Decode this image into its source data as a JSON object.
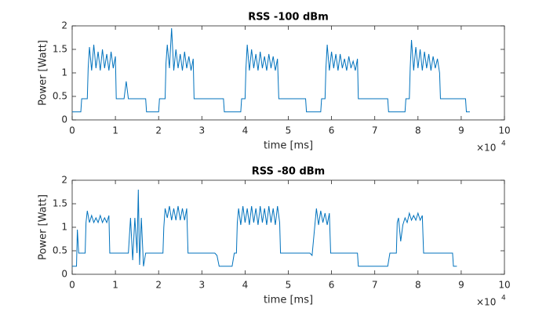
{
  "chart_data": [
    {
      "type": "line",
      "title": "RSS -100 dBm",
      "x_label": "time [ms]",
      "y_label": "Power [Watt]",
      "x_scale_base": "×10",
      "x_scale_exponent": "4",
      "xlim": [
        0,
        10
      ],
      "xticks": [
        0,
        1,
        2,
        3,
        4,
        5,
        6,
        7,
        8,
        9,
        10
      ],
      "ylim": [
        0,
        2
      ],
      "yticks": [
        0,
        0.5,
        1,
        1.5,
        2
      ],
      "grid": false,
      "x": [
        0,
        0.2,
        0.22,
        0.35,
        0.37,
        0.4,
        0.45,
        0.5,
        0.55,
        0.6,
        0.65,
        0.7,
        0.75,
        0.8,
        0.85,
        0.9,
        0.95,
        1.0,
        1.02,
        1.2,
        1.25,
        1.3,
        1.7,
        1.72,
        2.0,
        2.02,
        2.15,
        2.17,
        2.2,
        2.25,
        2.3,
        2.35,
        2.4,
        2.45,
        2.5,
        2.55,
        2.6,
        2.65,
        2.7,
        2.75,
        2.8,
        2.82,
        3.5,
        3.52,
        3.9,
        3.92,
        4.0,
        4.02,
        4.05,
        4.1,
        4.15,
        4.2,
        4.25,
        4.3,
        4.35,
        4.4,
        4.45,
        4.5,
        4.55,
        4.6,
        4.65,
        4.7,
        4.75,
        4.78,
        5.4,
        5.42,
        5.75,
        5.77,
        5.85,
        5.87,
        5.9,
        5.95,
        6.0,
        6.05,
        6.1,
        6.15,
        6.2,
        6.25,
        6.3,
        6.35,
        6.4,
        6.45,
        6.5,
        6.55,
        6.6,
        6.62,
        7.3,
        7.32,
        7.7,
        7.72,
        7.8,
        7.82,
        7.85,
        7.9,
        7.95,
        8.0,
        8.05,
        8.1,
        8.15,
        8.2,
        8.25,
        8.3,
        8.35,
        8.4,
        8.45,
        8.5,
        8.52,
        9.1,
        9.12,
        9.2
      ],
      "series": [
        {
          "color": "#0072bd",
          "values": [
            0.17,
            0.17,
            0.45,
            0.45,
            1.1,
            1.55,
            1.05,
            1.6,
            1.1,
            1.45,
            1.05,
            1.5,
            1.1,
            1.4,
            1.05,
            1.45,
            1.1,
            1.35,
            0.45,
            0.45,
            0.82,
            0.45,
            0.45,
            0.17,
            0.17,
            0.45,
            0.45,
            1.2,
            1.6,
            1.1,
            1.95,
            1.05,
            1.5,
            1.1,
            1.4,
            1.05,
            1.45,
            1.1,
            1.35,
            1.05,
            1.3,
            0.45,
            0.45,
            0.17,
            0.17,
            0.45,
            0.45,
            1.1,
            1.6,
            1.05,
            1.5,
            1.1,
            1.4,
            1.05,
            1.45,
            1.1,
            1.35,
            1.05,
            1.4,
            1.1,
            1.35,
            1.05,
            1.3,
            0.45,
            0.45,
            0.17,
            0.17,
            0.45,
            0.45,
            1.1,
            1.6,
            1.05,
            1.45,
            1.1,
            1.4,
            1.05,
            1.4,
            1.1,
            1.3,
            1.05,
            1.35,
            1.1,
            1.25,
            1.05,
            1.3,
            0.45,
            0.45,
            0.17,
            0.17,
            0.45,
            0.45,
            1.1,
            1.7,
            1.05,
            1.55,
            1.1,
            1.5,
            1.05,
            1.45,
            1.1,
            1.4,
            1.05,
            1.35,
            1.1,
            1.3,
            1.0,
            0.45,
            0.45,
            0.17,
            0.17
          ]
        }
      ]
    },
    {
      "type": "line",
      "title": "RSS -80 dBm",
      "x_label": "time [ms]",
      "y_label": "Power [Watt]",
      "x_scale_base": "×10",
      "x_scale_exponent": "4",
      "xlim": [
        0,
        10
      ],
      "xticks": [
        0,
        1,
        2,
        3,
        4,
        5,
        6,
        7,
        8,
        9,
        10
      ],
      "ylim": [
        0,
        2
      ],
      "yticks": [
        0,
        0.5,
        1,
        1.5,
        2
      ],
      "grid": false,
      "x": [
        0,
        0.1,
        0.12,
        0.15,
        0.3,
        0.32,
        0.35,
        0.4,
        0.45,
        0.5,
        0.55,
        0.6,
        0.65,
        0.7,
        0.75,
        0.8,
        0.85,
        0.87,
        1.3,
        1.35,
        1.4,
        1.45,
        1.5,
        1.53,
        1.56,
        1.6,
        1.65,
        1.7,
        2.1,
        2.12,
        2.15,
        2.2,
        2.25,
        2.3,
        2.35,
        2.4,
        2.45,
        2.5,
        2.55,
        2.6,
        2.65,
        2.68,
        3.3,
        3.35,
        3.4,
        3.7,
        3.75,
        3.8,
        3.82,
        3.85,
        3.9,
        3.95,
        4.0,
        4.05,
        4.1,
        4.15,
        4.2,
        4.25,
        4.3,
        4.35,
        4.4,
        4.45,
        4.5,
        4.55,
        4.6,
        4.65,
        4.7,
        4.75,
        4.8,
        4.82,
        5.5,
        5.55,
        5.6,
        5.62,
        5.65,
        5.7,
        5.75,
        5.8,
        5.85,
        5.9,
        5.95,
        5.98,
        6.6,
        6.62,
        7.3,
        7.35,
        7.5,
        7.52,
        7.55,
        7.6,
        7.65,
        7.7,
        7.75,
        7.8,
        7.85,
        7.9,
        7.95,
        8.0,
        8.05,
        8.1,
        8.13,
        8.8,
        8.82,
        8.9
      ],
      "series": [
        {
          "color": "#0072bd",
          "values": [
            0.17,
            0.17,
            0.95,
            0.45,
            0.45,
            1.1,
            1.35,
            1.1,
            1.25,
            1.1,
            1.2,
            1.1,
            1.25,
            1.1,
            1.2,
            1.1,
            1.25,
            0.45,
            0.45,
            1.2,
            0.3,
            1.2,
            0.45,
            1.8,
            0.2,
            1.2,
            0.17,
            0.45,
            0.45,
            1.0,
            1.4,
            1.2,
            1.45,
            1.15,
            1.4,
            1.15,
            1.45,
            1.15,
            1.4,
            1.15,
            1.4,
            0.45,
            0.45,
            0.4,
            0.17,
            0.17,
            0.45,
            0.45,
            1.1,
            1.4,
            1.05,
            1.45,
            1.1,
            1.4,
            1.05,
            1.45,
            1.1,
            1.4,
            1.05,
            1.45,
            1.1,
            1.4,
            1.05,
            1.45,
            1.1,
            1.4,
            1.05,
            1.45,
            1.1,
            0.45,
            0.45,
            0.4,
            0.9,
            1.1,
            1.4,
            1.05,
            1.35,
            1.1,
            1.3,
            1.05,
            1.3,
            0.45,
            0.45,
            0.17,
            0.17,
            0.45,
            0.45,
            1.1,
            1.2,
            0.7,
            1.05,
            1.2,
            1.1,
            1.3,
            1.15,
            1.25,
            1.15,
            1.3,
            1.15,
            1.25,
            0.45,
            0.45,
            0.17,
            0.17
          ]
        }
      ]
    }
  ]
}
